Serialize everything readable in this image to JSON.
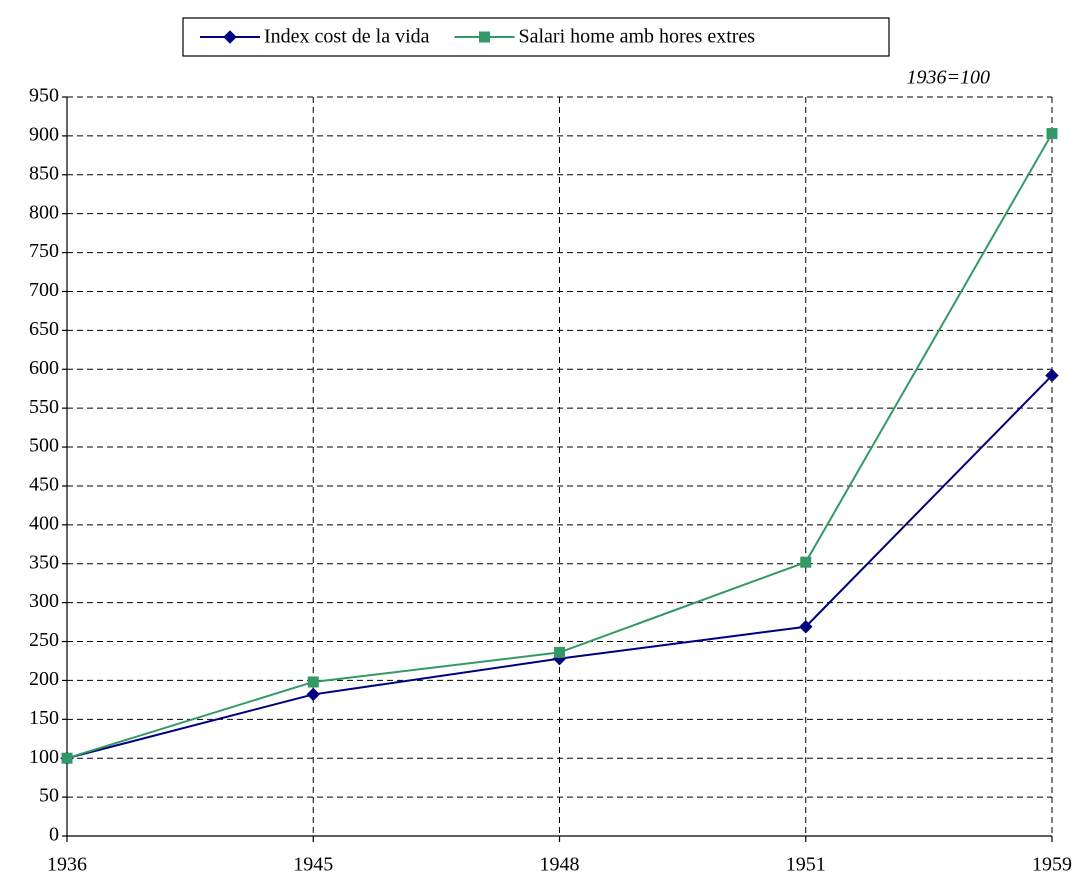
{
  "chart_data": {
    "type": "line",
    "annotation": "1936=100",
    "categories": [
      "1936",
      "1945",
      "1948",
      "1951",
      "1959"
    ],
    "series": [
      {
        "name": "Index cost de la vida",
        "color": "#000080",
        "marker": "diamond",
        "values": [
          100,
          182,
          228,
          269,
          592
        ]
      },
      {
        "name": "Salari home amb hores extres",
        "color": "#339966",
        "marker": "square",
        "values": [
          100,
          198,
          236,
          352,
          903
        ]
      }
    ],
    "ylim": [
      0,
      950
    ],
    "yticks": [
      0,
      50,
      100,
      150,
      200,
      250,
      300,
      350,
      400,
      450,
      500,
      550,
      600,
      650,
      700,
      750,
      800,
      850,
      900,
      950
    ],
    "grid": true,
    "legend": "top"
  }
}
